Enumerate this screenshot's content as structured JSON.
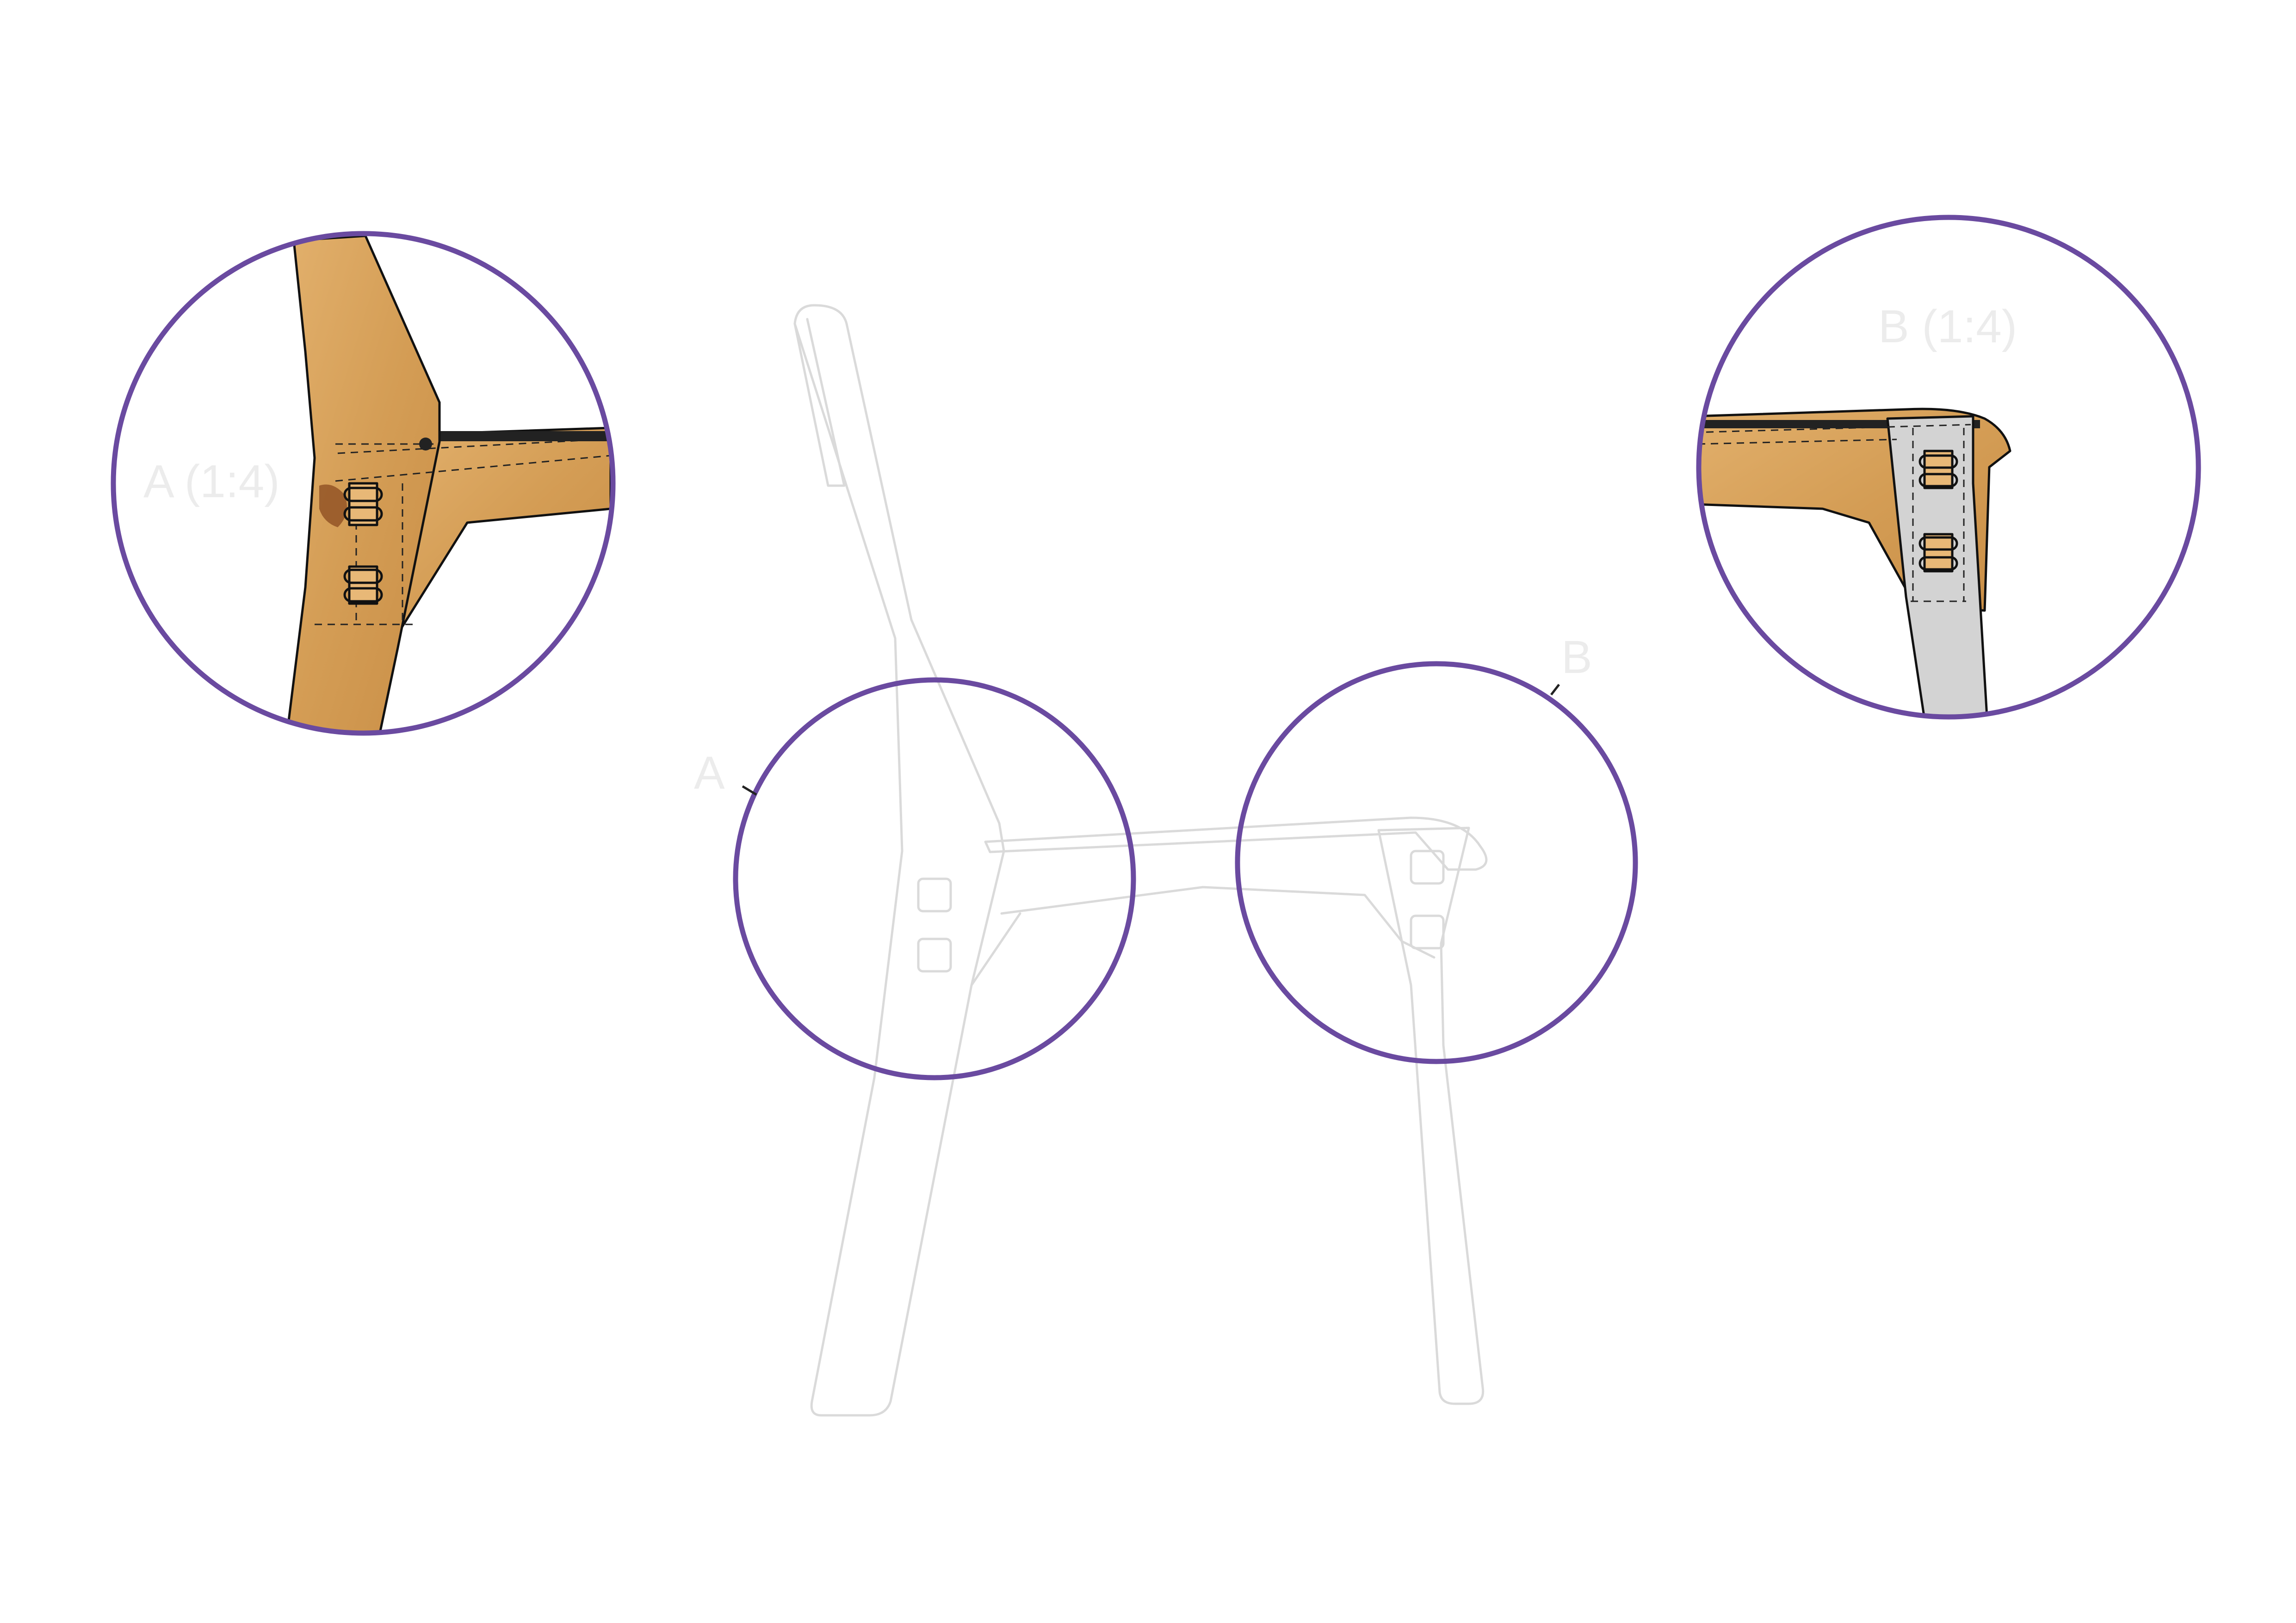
{
  "labels": {
    "detail_a": "A (1:4)",
    "detail_b": "B (1:4)",
    "callout_a": "A",
    "callout_b": "B"
  },
  "colors": {
    "ring": "#6a4aa0",
    "wood": "#d9a35c",
    "wood_dark": "#b97b38",
    "steel": "#d3d3d3",
    "ghost_line": "#dadada",
    "label": "#ececec"
  }
}
